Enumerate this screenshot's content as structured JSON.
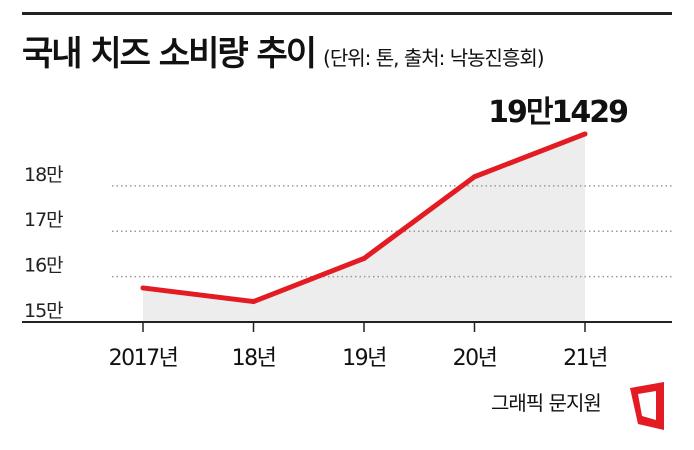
{
  "chart_data": {
    "type": "area",
    "title": "국내 치즈 소비량 추이",
    "unit_note": "(단위: 톤, 출처: 낙농진흥회)",
    "categories": [
      "2017년",
      "18년",
      "19년",
      "20년",
      "21년"
    ],
    "values": [
      157500,
      154500,
      164000,
      182000,
      191429
    ],
    "ylim": [
      150000,
      194500
    ],
    "yticks": [
      {
        "value": 150000,
        "label": "15만"
      },
      {
        "value": 160000,
        "label": "16만"
      },
      {
        "value": 170000,
        "label": "17만"
      },
      {
        "value": 180000,
        "label": "18만"
      }
    ],
    "last_value_label": "19만1429",
    "grid": true,
    "colors": {
      "line": "#e31b23",
      "area": "#ededed",
      "grid": "#9a9a9a",
      "axis": "#222222"
    }
  },
  "credit": "그래픽 문지원",
  "logo": {
    "icon": "news-logo-icon",
    "color": "#e31b23"
  }
}
